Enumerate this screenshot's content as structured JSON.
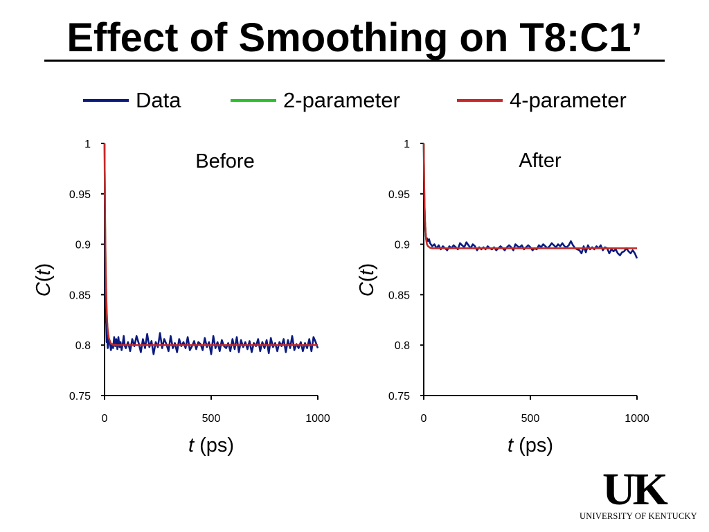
{
  "slide": {
    "title": "Effect of Smoothing on T8:C1’"
  },
  "legend": [
    {
      "label": "Data",
      "color": "#0a1a7f"
    },
    {
      "label": "2-parameter",
      "color": "#2bbf2b"
    },
    {
      "label": "4-parameter",
      "color": "#c62828"
    }
  ],
  "logo": {
    "letters": "UK",
    "caption": "UNIVERSITY OF KENTUCKY"
  },
  "chart_data": [
    {
      "type": "line",
      "title": "Before",
      "xlabel": "t (ps)",
      "ylabel": "C(t)",
      "xlim": [
        0,
        1000
      ],
      "ylim": [
        0.75,
        1
      ],
      "xticks": [
        0,
        500,
        1000
      ],
      "yticks": [
        0.75,
        0.8,
        0.85,
        0.9,
        0.95,
        1
      ],
      "grid": false,
      "series": [
        {
          "name": "Data",
          "color": "#0a1a7f",
          "x": [
            0,
            2,
            4,
            6,
            8,
            10,
            12,
            15,
            20,
            25,
            30,
            35,
            40,
            45,
            50,
            55,
            60,
            65,
            70,
            75,
            80,
            85,
            90,
            95,
            100,
            110,
            120,
            130,
            140,
            150,
            160,
            170,
            180,
            190,
            200,
            210,
            220,
            230,
            240,
            250,
            260,
            270,
            280,
            290,
            300,
            310,
            320,
            330,
            340,
            350,
            360,
            370,
            380,
            390,
            400,
            410,
            420,
            430,
            440,
            450,
            460,
            470,
            480,
            490,
            500,
            510,
            520,
            530,
            540,
            550,
            560,
            570,
            580,
            590,
            600,
            610,
            620,
            630,
            640,
            650,
            660,
            670,
            680,
            690,
            700,
            710,
            720,
            730,
            740,
            750,
            760,
            770,
            780,
            790,
            800,
            810,
            820,
            830,
            840,
            850,
            860,
            870,
            880,
            890,
            900,
            910,
            920,
            930,
            940,
            950,
            960,
            970,
            980,
            990,
            1000
          ],
          "y": [
            1.0,
            0.93,
            0.86,
            0.83,
            0.82,
            0.803,
            0.81,
            0.797,
            0.806,
            0.803,
            0.795,
            0.801,
            0.797,
            0.808,
            0.799,
            0.806,
            0.796,
            0.808,
            0.798,
            0.803,
            0.795,
            0.801,
            0.809,
            0.799,
            0.797,
            0.803,
            0.794,
            0.806,
            0.799,
            0.809,
            0.802,
            0.793,
            0.806,
            0.797,
            0.811,
            0.798,
            0.804,
            0.791,
            0.803,
            0.798,
            0.812,
            0.797,
            0.806,
            0.801,
            0.794,
            0.809,
            0.797,
            0.802,
            0.793,
            0.806,
            0.799,
            0.803,
            0.797,
            0.808,
            0.795,
            0.799,
            0.804,
            0.796,
            0.803,
            0.801,
            0.795,
            0.807,
            0.798,
            0.803,
            0.791,
            0.809,
            0.797,
            0.803,
            0.794,
            0.805,
            0.799,
            0.797,
            0.802,
            0.794,
            0.806,
            0.796,
            0.808,
            0.793,
            0.805,
            0.798,
            0.803,
            0.796,
            0.804,
            0.793,
            0.802,
            0.799,
            0.806,
            0.794,
            0.803,
            0.797,
            0.805,
            0.792,
            0.807,
            0.798,
            0.802,
            0.794,
            0.803,
            0.799,
            0.806,
            0.793,
            0.805,
            0.797,
            0.809,
            0.795,
            0.801,
            0.797,
            0.803,
            0.794,
            0.802,
            0.797,
            0.806,
            0.794,
            0.808,
            0.803,
            0.797
          ]
        },
        {
          "name": "2-parameter",
          "color": "#2bbf2b",
          "x": [
            0,
            2,
            4,
            6,
            8,
            10,
            12,
            15,
            20,
            30,
            40,
            60,
            100,
            200,
            400,
            600,
            800,
            1000
          ],
          "y": [
            1.0,
            0.945,
            0.903,
            0.872,
            0.851,
            0.836,
            0.825,
            0.815,
            0.807,
            0.8015,
            0.8003,
            0.8,
            0.8,
            0.8,
            0.8,
            0.8,
            0.8,
            0.8
          ]
        },
        {
          "name": "4-parameter",
          "color": "#c62828",
          "x": [
            0,
            2,
            4,
            6,
            8,
            10,
            12,
            15,
            20,
            30,
            40,
            60,
            100,
            200,
            400,
            600,
            800,
            1000
          ],
          "y": [
            1.0,
            0.945,
            0.903,
            0.872,
            0.851,
            0.836,
            0.825,
            0.815,
            0.807,
            0.8015,
            0.8003,
            0.8,
            0.8,
            0.8,
            0.8,
            0.8,
            0.8,
            0.8
          ]
        }
      ]
    },
    {
      "type": "line",
      "title": "After",
      "xlabel": "t (ps)",
      "ylabel": "C(t)",
      "xlim": [
        0,
        1000
      ],
      "ylim": [
        0.75,
        1
      ],
      "xticks": [
        0,
        500,
        1000
      ],
      "yticks": [
        0.75,
        0.8,
        0.85,
        0.9,
        0.95,
        1
      ],
      "grid": false,
      "series": [
        {
          "name": "Data",
          "color": "#0a1a7f",
          "x": [
            0,
            2,
            4,
            6,
            8,
            10,
            12,
            15,
            20,
            25,
            30,
            40,
            50,
            60,
            70,
            80,
            90,
            100,
            110,
            120,
            130,
            140,
            150,
            160,
            170,
            180,
            190,
            200,
            210,
            220,
            230,
            240,
            250,
            260,
            270,
            280,
            290,
            300,
            310,
            320,
            330,
            340,
            350,
            360,
            370,
            380,
            390,
            400,
            410,
            420,
            430,
            440,
            450,
            460,
            470,
            480,
            490,
            500,
            510,
            520,
            530,
            540,
            550,
            560,
            570,
            580,
            590,
            600,
            610,
            620,
            630,
            640,
            650,
            660,
            670,
            680,
            690,
            700,
            710,
            720,
            730,
            740,
            750,
            760,
            770,
            780,
            790,
            800,
            810,
            820,
            830,
            840,
            850,
            860,
            870,
            880,
            890,
            900,
            910,
            920,
            930,
            940,
            950,
            960,
            970,
            980,
            990,
            1000
          ],
          "y": [
            1.0,
            0.955,
            0.935,
            0.922,
            0.914,
            0.908,
            0.904,
            0.906,
            0.903,
            0.905,
            0.901,
            0.898,
            0.9,
            0.896,
            0.899,
            0.895,
            0.898,
            0.896,
            0.894,
            0.898,
            0.896,
            0.899,
            0.897,
            0.895,
            0.901,
            0.899,
            0.897,
            0.902,
            0.899,
            0.896,
            0.9,
            0.898,
            0.894,
            0.897,
            0.895,
            0.897,
            0.895,
            0.898,
            0.896,
            0.895,
            0.897,
            0.894,
            0.896,
            0.898,
            0.896,
            0.894,
            0.897,
            0.899,
            0.897,
            0.894,
            0.9,
            0.898,
            0.897,
            0.899,
            0.895,
            0.897,
            0.899,
            0.897,
            0.894,
            0.896,
            0.895,
            0.899,
            0.897,
            0.9,
            0.898,
            0.896,
            0.898,
            0.901,
            0.899,
            0.897,
            0.9,
            0.898,
            0.901,
            0.898,
            0.897,
            0.899,
            0.903,
            0.899,
            0.896,
            0.895,
            0.894,
            0.891,
            0.898,
            0.892,
            0.899,
            0.895,
            0.897,
            0.895,
            0.898,
            0.896,
            0.899,
            0.894,
            0.897,
            0.896,
            0.891,
            0.895,
            0.893,
            0.895,
            0.891,
            0.889,
            0.892,
            0.893,
            0.896,
            0.893,
            0.891,
            0.894,
            0.891,
            0.886
          ]
        },
        {
          "name": "2-parameter",
          "color": "#2bbf2b",
          "x": [
            0,
            2,
            4,
            6,
            8,
            10,
            12,
            15,
            20,
            30,
            40,
            60,
            100,
            200,
            400,
            600,
            800,
            1000
          ],
          "y": [
            1.0,
            0.965,
            0.94,
            0.925,
            0.915,
            0.908,
            0.904,
            0.9,
            0.898,
            0.8965,
            0.896,
            0.896,
            0.896,
            0.896,
            0.896,
            0.896,
            0.896,
            0.896
          ]
        },
        {
          "name": "4-parameter",
          "color": "#c62828",
          "x": [
            0,
            2,
            4,
            6,
            8,
            10,
            12,
            15,
            20,
            30,
            40,
            60,
            100,
            200,
            400,
            600,
            800,
            1000
          ],
          "y": [
            1.0,
            0.965,
            0.94,
            0.925,
            0.915,
            0.908,
            0.904,
            0.9,
            0.898,
            0.8965,
            0.896,
            0.896,
            0.896,
            0.896,
            0.896,
            0.896,
            0.896,
            0.896
          ]
        }
      ]
    }
  ]
}
